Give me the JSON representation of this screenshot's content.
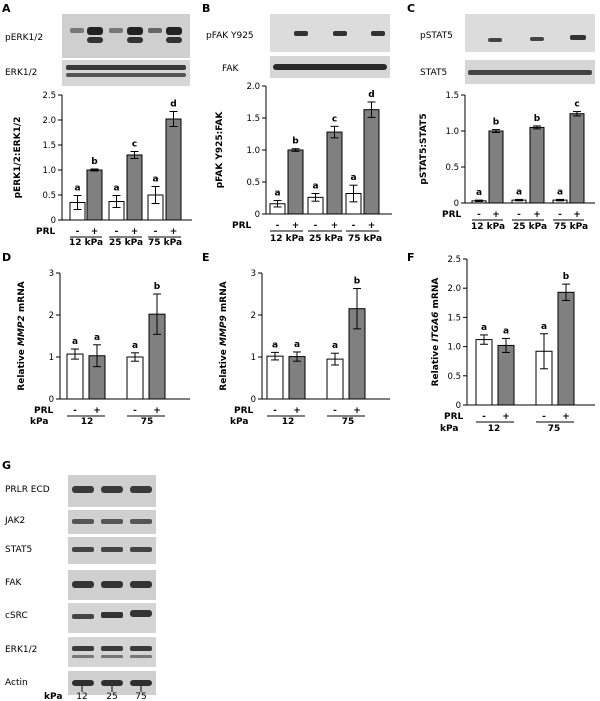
{
  "panels": {
    "A": {
      "letter": "A",
      "blots": [
        "pERK1/2",
        "ERK1/2"
      ],
      "ylabel": "pERK1/2:ERK1/2",
      "ylim": [
        0,
        2.5
      ],
      "yticks": [
        "0",
        "0.5",
        "1.0",
        "1.5",
        "2.0",
        "2.5"
      ],
      "groups": [
        "12 kPa",
        "25 kPa",
        "75 kPa"
      ]
    },
    "B": {
      "letter": "B",
      "blots": [
        "pFAK Y925",
        "FAK"
      ],
      "ylabel": "pFAK Y925:FAK",
      "ylim": [
        0,
        2.0
      ],
      "yticks": [
        "0",
        "0.5",
        "1.0",
        "1.5",
        "2.0"
      ],
      "groups": [
        "12 kPa",
        "25 kPa",
        "75 kPa"
      ]
    },
    "C": {
      "letter": "C",
      "blots": [
        "pSTAT5",
        "STAT5"
      ],
      "ylabel": "pSTAT5:STAT5",
      "ylim": [
        0,
        1.5
      ],
      "yticks": [
        "0",
        "0.5",
        "1.0",
        "1.5"
      ],
      "groups": [
        "12 kPa",
        "25 kPa",
        "75 kPa"
      ]
    },
    "D": {
      "letter": "D",
      "ylabel_pre": "Relative ",
      "ylabel_gene": "MMP2",
      "ylabel_post": " mRNA",
      "ylim": [
        0,
        3
      ],
      "yticks": [
        "0",
        "1",
        "2",
        "3"
      ],
      "groups": [
        "12",
        "75"
      ]
    },
    "E": {
      "letter": "E",
      "ylabel_pre": "Relative ",
      "ylabel_gene": "MMP9",
      "ylabel_post": " mRNA",
      "ylim": [
        0,
        3
      ],
      "yticks": [
        "0",
        "1",
        "2",
        "3"
      ],
      "groups": [
        "12",
        "75"
      ]
    },
    "F": {
      "letter": "F",
      "ylabel_pre": "Relative ",
      "ylabel_gene": "ITGA6",
      "ylabel_post": " mRNA",
      "ylim": [
        0,
        2.5
      ],
      "yticks": [
        "0",
        "0.5",
        "1.0",
        "1.5",
        "2.0",
        "2.5"
      ],
      "groups": [
        "12",
        "75"
      ]
    },
    "G": {
      "letter": "G",
      "blots": [
        "PRLR ECD",
        "JAK2",
        "STAT5",
        "FAK",
        "cSRC",
        "ERK1/2",
        "Actin"
      ],
      "kpa_label": "kPa",
      "kpa_values": [
        "12",
        "25",
        "75"
      ]
    }
  },
  "prl_label": "PRL",
  "kpa_label": "kPa",
  "minus": "-",
  "plus": "+",
  "colors": {
    "control": "#ffffff",
    "prl": "#808080",
    "stroke": "#000000"
  },
  "chart_data": [
    {
      "panel": "A",
      "type": "bar",
      "ylabel": "pERK1/2:ERK1/2",
      "ylim": [
        0,
        2.5
      ],
      "categories": [
        "12 kPa -",
        "12 kPa +",
        "25 kPa -",
        "25 kPa +",
        "75 kPa -",
        "75 kPa +"
      ],
      "values": [
        0.35,
        1.0,
        0.37,
        1.3,
        0.5,
        2.02
      ],
      "errors": [
        0.14,
        0.02,
        0.12,
        0.07,
        0.17,
        0.15
      ],
      "significance": [
        "a",
        "b",
        "a",
        "c",
        "a",
        "d"
      ]
    },
    {
      "panel": "B",
      "type": "bar",
      "ylabel": "pFAK Y925:FAK",
      "ylim": [
        0,
        2.0
      ],
      "categories": [
        "12 kPa -",
        "12 kPa +",
        "25 kPa -",
        "25 kPa +",
        "75 kPa -",
        "75 kPa +"
      ],
      "values": [
        0.16,
        1.0,
        0.26,
        1.28,
        0.32,
        1.63
      ],
      "errors": [
        0.05,
        0.02,
        0.06,
        0.09,
        0.13,
        0.12
      ],
      "significance": [
        "a",
        "b",
        "a",
        "c",
        "a",
        "d"
      ]
    },
    {
      "panel": "C",
      "type": "bar",
      "ylabel": "pSTAT5:STAT5",
      "ylim": [
        0,
        1.5
      ],
      "categories": [
        "12 kPa -",
        "12 kPa +",
        "25 kPa -",
        "25 kPa +",
        "75 kPa -",
        "75 kPa +"
      ],
      "values": [
        0.03,
        1.0,
        0.04,
        1.05,
        0.04,
        1.24
      ],
      "errors": [
        0.01,
        0.02,
        0.01,
        0.02,
        0.01,
        0.03
      ],
      "significance": [
        "a",
        "b",
        "a",
        "b",
        "a",
        "c"
      ]
    },
    {
      "panel": "D",
      "type": "bar",
      "ylabel": "Relative MMP2 mRNA",
      "ylim": [
        0,
        3
      ],
      "categories": [
        "12 -",
        "12 +",
        "75 -",
        "75 +"
      ],
      "values": [
        1.07,
        1.03,
        1.0,
        2.02
      ],
      "errors": [
        0.12,
        0.26,
        0.1,
        0.48
      ],
      "significance": [
        "a",
        "a",
        "a",
        "b"
      ]
    },
    {
      "panel": "E",
      "type": "bar",
      "ylabel": "Relative MMP9 mRNA",
      "ylim": [
        0,
        3
      ],
      "categories": [
        "12 -",
        "12 +",
        "75 -",
        "75 +"
      ],
      "values": [
        1.02,
        1.01,
        0.95,
        2.15
      ],
      "errors": [
        0.09,
        0.11,
        0.14,
        0.48
      ],
      "significance": [
        "a",
        "a",
        "a",
        "b"
      ]
    },
    {
      "panel": "F",
      "type": "bar",
      "ylabel": "Relative ITGA6 mRNA",
      "ylim": [
        0,
        2.5
      ],
      "categories": [
        "12 -",
        "12 +",
        "75 -",
        "75 +"
      ],
      "values": [
        1.12,
        1.02,
        0.92,
        1.93
      ],
      "errors": [
        0.08,
        0.12,
        0.3,
        0.14
      ],
      "significance": [
        "a",
        "a",
        "a",
        "b"
      ]
    }
  ]
}
